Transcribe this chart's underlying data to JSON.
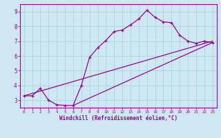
{
  "xlabel": "Windchill (Refroidissement éolien,°C)",
  "background_color": "#cde8f0",
  "line_color": "#990099",
  "grid_color": "#aad4dc",
  "axis_color": "#990099",
  "xlim": [
    -0.5,
    23.5
  ],
  "ylim": [
    2.5,
    9.5
  ],
  "xticks": [
    0,
    1,
    2,
    3,
    4,
    5,
    6,
    7,
    8,
    9,
    10,
    11,
    12,
    13,
    14,
    15,
    16,
    17,
    18,
    19,
    20,
    21,
    22,
    23
  ],
  "yticks": [
    3,
    4,
    5,
    6,
    7,
    8,
    9
  ],
  "series1_x": [
    0,
    1,
    2,
    3,
    4,
    5,
    6,
    7,
    8,
    9,
    10,
    11,
    12,
    13,
    14,
    15,
    16,
    17,
    18,
    19,
    20,
    21,
    22,
    23
  ],
  "series1_y": [
    3.3,
    3.3,
    3.8,
    3.0,
    2.7,
    2.65,
    2.65,
    4.0,
    5.9,
    6.55,
    7.05,
    7.65,
    7.75,
    8.1,
    8.5,
    9.1,
    8.6,
    8.3,
    8.25,
    7.4,
    7.0,
    6.85,
    7.0,
    6.9
  ],
  "series2_x": [
    0,
    23
  ],
  "series2_y": [
    3.3,
    7.0
  ],
  "series3_x": [
    6,
    23
  ],
  "series3_y": [
    2.65,
    6.9
  ],
  "xlabel_fontsize": 5.5,
  "tick_fontsize_x": 4.2,
  "tick_fontsize_y": 5.5
}
